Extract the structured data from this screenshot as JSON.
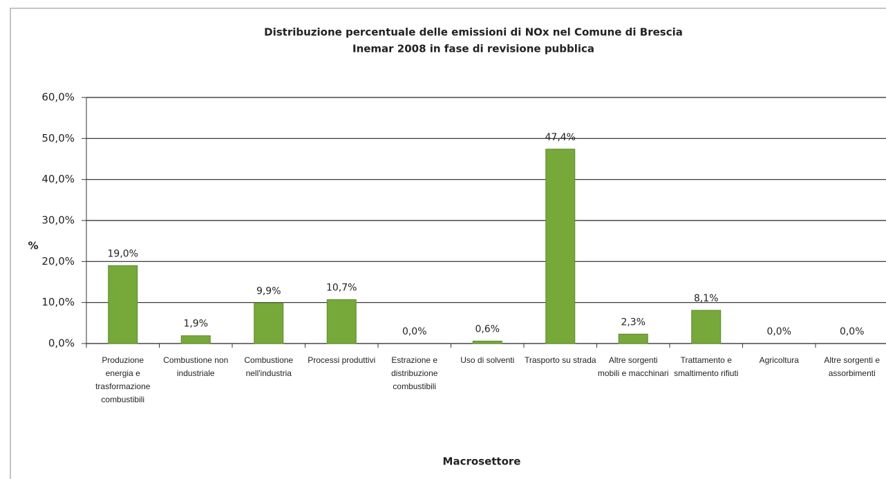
{
  "chart_data": {
    "type": "bar",
    "title": "Distribuzione percentuale delle emissioni di NOx nel Comune di Brescia",
    "subtitle": "Inemar 2008 in fase di revisione pubblica",
    "y_label": "%",
    "x_label": "Macrosettore",
    "categories": [
      "Produzione energia e trasformazione combustibili",
      "Combustione non industriale",
      "Combustione nell'industria",
      "Processi produttivi",
      "Estrazione e distribuzione combustibili",
      "Uso di solventi",
      "Trasporto su strada",
      "Altre sorgenti mobili e macchinari",
      "Trattamento e smaltimento rifiuti",
      "Agricoltura",
      "Altre sorgenti e assorbimenti"
    ],
    "values": [
      19.0,
      1.9,
      9.9,
      10.7,
      0.0,
      0.6,
      47.4,
      2.3,
      8.1,
      0.0,
      0.0
    ],
    "value_labels": [
      "19,0%",
      "1,9%",
      "9,9%",
      "10,7%",
      "0,0%",
      "0,6%",
      "47,4%",
      "2,3%",
      "8,1%",
      "0,0%",
      "0,0%"
    ],
    "color": "#77a83a",
    "ylim": [
      0,
      60
    ],
    "yticks": [
      {
        "value": 0,
        "label": "0,0%"
      },
      {
        "value": 10,
        "label": "10,0%"
      },
      {
        "value": 20,
        "label": "20,0%"
      },
      {
        "value": 30,
        "label": "30,0%"
      },
      {
        "value": 40,
        "label": "40,0%"
      },
      {
        "value": 50,
        "label": "50,0%"
      },
      {
        "value": 60,
        "label": "60,0%"
      }
    ],
    "grid": true
  }
}
